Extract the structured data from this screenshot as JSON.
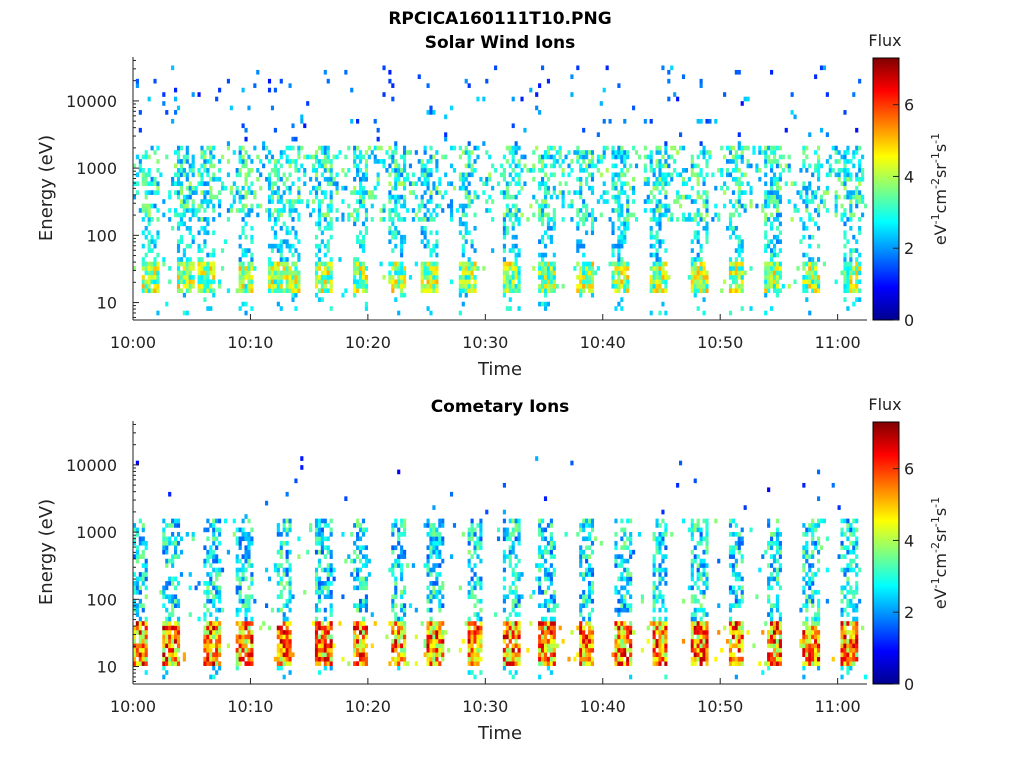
{
  "figure": {
    "title": "RPCICA160111T10.PNG"
  },
  "chart_data": [
    {
      "type": "heatmap",
      "title": "Solar Wind Ions",
      "xlabel": "Time",
      "ylabel": "Energy (eV)",
      "x_ticks": [
        "10:00",
        "10:10",
        "10:20",
        "10:30",
        "10:40",
        "10:50",
        "11:00"
      ],
      "xlim_minutes": [
        0,
        62.5
      ],
      "y_scale": "log",
      "y_ticks": [
        {
          "value": 10,
          "label": "10"
        },
        {
          "value": 100,
          "label": "100"
        },
        {
          "value": 1000,
          "label": "1000"
        },
        {
          "value": 10000,
          "label": "10000"
        }
      ],
      "ylim": [
        5.5,
        45000
      ],
      "colorbar": {
        "title": "Flux",
        "label": "eV-1cm-2sr-1s-1",
        "ticks": [
          0,
          2,
          4,
          6
        ],
        "range": [
          0,
          7.3
        ],
        "colormap": "jet"
      },
      "grid": false,
      "bursts_minutes": [
        1.5,
        4.5,
        6.2,
        9.6,
        12.3,
        13.6,
        16.2,
        19.4,
        22.5,
        25.3,
        28.5,
        32.3,
        35.3,
        38.5,
        41.5,
        44.8,
        48.2,
        51.4,
        54.5,
        57.8,
        61.2
      ],
      "features": {
        "low_band_energy": [
          12,
          40
        ],
        "low_band_level": [
          2.5,
          5.2
        ],
        "mid_band_energy": [
          150,
          2000
        ],
        "mid_band_level": [
          1.8,
          4.0
        ],
        "sparse_high_energy": [
          2000,
          30000
        ],
        "sparse_high_level": [
          1.0,
          2.5
        ]
      }
    },
    {
      "type": "heatmap",
      "title": "Cometary Ions",
      "xlabel": "Time",
      "ylabel": "Energy (eV)",
      "x_ticks": [
        "10:00",
        "10:10",
        "10:20",
        "10:30",
        "10:40",
        "10:50",
        "11:00"
      ],
      "xlim_minutes": [
        0,
        62.5
      ],
      "y_scale": "log",
      "y_ticks": [
        {
          "value": 10,
          "label": "10"
        },
        {
          "value": 100,
          "label": "100"
        },
        {
          "value": 1000,
          "label": "1000"
        },
        {
          "value": 10000,
          "label": "10000"
        }
      ],
      "ylim": [
        5.5,
        45000
      ],
      "colorbar": {
        "title": "Flux",
        "label": "eV-1cm-2sr-1s-1",
        "ticks": [
          0,
          2,
          4,
          6
        ],
        "range": [
          0,
          7.3
        ],
        "colormap": "jet"
      },
      "grid": false,
      "bursts_minutes": [
        0.5,
        3.3,
        6.8,
        9.5,
        12.9,
        16.2,
        19.4,
        22.6,
        25.8,
        29.1,
        32.2,
        35.3,
        38.6,
        41.8,
        44.9,
        48.2,
        51.4,
        54.6,
        57.8,
        61.0
      ],
      "features": {
        "low_band_energy": [
          10,
          45
        ],
        "low_band_level": [
          3.5,
          7.0
        ],
        "mid_band_energy": [
          60,
          1500
        ],
        "mid_band_level": [
          1.5,
          3.8
        ],
        "sparse_high_energy": [
          1500,
          12000
        ],
        "sparse_high_level": [
          0.8,
          2.2
        ]
      }
    }
  ]
}
